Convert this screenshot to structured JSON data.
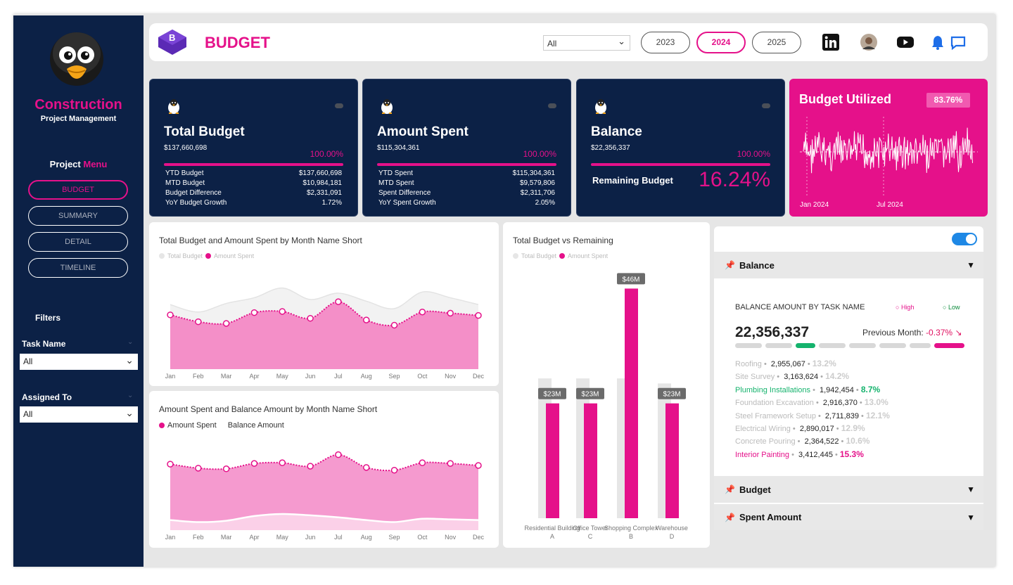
{
  "sidebar": {
    "brand_title": "Construction",
    "brand_subtitle": "Project Management",
    "menu_title_a": "Project",
    "menu_title_b": "Menu",
    "nav": [
      "BUDGET",
      "SUMMARY",
      "DETAIL",
      "TIMELINE"
    ],
    "filters_title": "Filters",
    "task_label": "Task Name",
    "task_value": "All",
    "assigned_label": "Assigned To",
    "assigned_value": "All"
  },
  "header": {
    "title": "BUDGET",
    "select_value": "All",
    "years": [
      "2023",
      "2024",
      "2025"
    ],
    "active_year": "2024",
    "icons": [
      "linkedin-icon",
      "avatar",
      "youtube-icon",
      "bell-icon",
      "chat-icon"
    ]
  },
  "kpis": {
    "total": {
      "title": "Total Budget",
      "value": "$137,660,698",
      "pct": "100.00%",
      "rows": [
        {
          "label": "YTD Budget",
          "value": "$137,660,698"
        },
        {
          "label": "MTD Budget",
          "value": "$10,984,181"
        },
        {
          "label": "Budget Difference",
          "value": "$2,331,091"
        },
        {
          "label": "YoY Budget Growth",
          "value": "1.72%"
        }
      ]
    },
    "spent": {
      "title": "Amount Spent",
      "value": "$115,304,361",
      "pct": "100.00%",
      "rows": [
        {
          "label": "YTD Spent",
          "value": "$115,304,361"
        },
        {
          "label": "MTD Spent",
          "value": "$9,579,806"
        },
        {
          "label": "Spent Difference",
          "value": "$2,311,706"
        },
        {
          "label": "YoY Spent Growth",
          "value": "2.05%"
        }
      ]
    },
    "balance": {
      "title": "Balance",
      "value": "$22,356,337",
      "pct": "100.00%",
      "remaining_label": "Remaining Budget",
      "remaining_value": "16.24%"
    },
    "utilized": {
      "title": "Budget Utilized",
      "badge": "83.76%",
      "x_start": "Jan 2024",
      "x_mid": "Jul 2024"
    }
  },
  "chart1": {
    "title": "Total Budget and Amount Spent by Month Name Short",
    "legend_a": "Total Budget",
    "legend_b": "Amount Spent"
  },
  "chart2": {
    "title": "Amount Spent and Balance Amount by Month Name Short",
    "legend_a": "Amount Spent",
    "legend_b": "Balance Amount"
  },
  "chart3": {
    "title": "Total Budget vs Remaining",
    "legend_a": "Total Budget",
    "legend_b": "Amount Spent"
  },
  "chart_data": [
    {
      "type": "area",
      "categories": [
        "Jan",
        "Feb",
        "Mar",
        "Apr",
        "May",
        "Jun",
        "Jul",
        "Aug",
        "Sep",
        "Oct",
        "Nov",
        "Dec"
      ],
      "series": [
        {
          "name": "Total Budget",
          "values": [
            11.3,
            10.0,
            11.5,
            12.5,
            14.2,
            12.2,
            13.3,
            11.9,
            10.6,
            13.5,
            12.5,
            11.3
          ]
        },
        {
          "name": "Amount Spent",
          "values": [
            9.5,
            8.3,
            8.0,
            9.9,
            10.1,
            8.9,
            11.8,
            8.6,
            7.7,
            10.0,
            9.8,
            9.4
          ]
        }
      ]
    },
    {
      "type": "area",
      "categories": [
        "Jan",
        "Feb",
        "Mar",
        "Apr",
        "May",
        "Jun",
        "Jul",
        "Aug",
        "Sep",
        "Oct",
        "Nov",
        "Dec"
      ],
      "series": [
        {
          "name": "Amount Spent",
          "values": [
            9.8,
            9.2,
            9.1,
            9.9,
            10.0,
            9.5,
            11.2,
            9.3,
            8.9,
            10.0,
            9.9,
            9.6
          ]
        },
        {
          "name": "Balance Amount",
          "values": [
            1.5,
            1.2,
            1.4,
            2.1,
            2.4,
            2.2,
            1.9,
            1.5,
            1.2,
            1.7,
            1.6,
            1.5
          ]
        }
      ]
    },
    {
      "type": "bar",
      "categories": [
        "Residential Building A",
        "Office Tower C",
        "Shopping Complex B",
        "Warehouse D"
      ],
      "series": [
        {
          "name": "Total Budget",
          "values": [
            28,
            28,
            28,
            27
          ]
        },
        {
          "name": "Amount Spent",
          "values": [
            23,
            23,
            46,
            23
          ]
        }
      ],
      "labels": [
        "$23M",
        "$23M",
        "$46M",
        "$23M"
      ]
    }
  ],
  "right_panel": {
    "balance_header": "Balance",
    "budget_header": "Budget",
    "spent_header": "Spent Amount",
    "visual_title": "BALANCE AMOUNT BY TASK NAME",
    "high": "High",
    "low": "Low",
    "total": "22,356,337",
    "prev_label": "Previous Month:",
    "prev_value": "-0.37%",
    "tasks": [
      {
        "name": "Roofing",
        "value": "2,955,067",
        "pct": "13.2%",
        "hl": ""
      },
      {
        "name": "Site Survey",
        "value": "3,163,624",
        "pct": "14.2%",
        "hl": ""
      },
      {
        "name": "Plumbing Installations",
        "value": "1,942,454",
        "pct": "8.7%",
        "hl": "g"
      },
      {
        "name": "Foundation Excavation",
        "value": "2,916,370",
        "pct": "13.0%",
        "hl": ""
      },
      {
        "name": "Steel Framework Setup",
        "value": "2,711,839",
        "pct": "12.1%",
        "hl": ""
      },
      {
        "name": "Electrical Wiring",
        "value": "2,890,017",
        "pct": "12.9%",
        "hl": ""
      },
      {
        "name": "Concrete Pouring",
        "value": "2,364,522",
        "pct": "10.6%",
        "hl": ""
      },
      {
        "name": "Interior Painting",
        "value": "3,412,445",
        "pct": "15.3%",
        "hl": "p"
      }
    ]
  },
  "colors": {
    "navy": "#0c2146",
    "pink": "#e5118a",
    "light_pink": "#f48fc8",
    "green": "#15b36d"
  }
}
